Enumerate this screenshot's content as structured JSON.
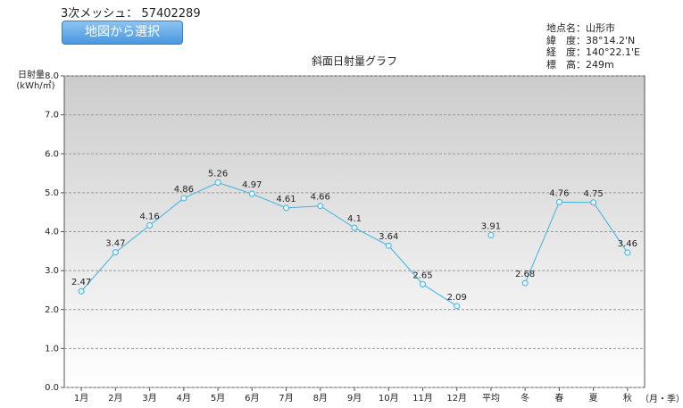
{
  "header": {
    "mesh_label": "3次メッシュ：",
    "mesh_code": "57402289",
    "button": "地図から選択"
  },
  "info": [
    {
      "label": "地点名：",
      "value": "山形市"
    },
    {
      "label": "緯　度：",
      "value": "38°14.2'N"
    },
    {
      "label": "経　度：",
      "value": "140°22.1'E"
    },
    {
      "label": "標　高：",
      "value": "249m"
    }
  ],
  "chart_data": {
    "type": "line",
    "title": "斜面日射量グラフ",
    "y_label": [
      "日射量",
      "(kWh/㎡)"
    ],
    "x_label": "（月・季）",
    "categories": [
      "1月",
      "2月",
      "3月",
      "4月",
      "5月",
      "6月",
      "7月",
      "8月",
      "9月",
      "10月",
      "11月",
      "12月",
      "平均",
      "冬",
      "春",
      "夏",
      "秋"
    ],
    "series": [
      {
        "color": "#3cb2e2",
        "values": [
          2.47,
          3.47,
          4.16,
          4.86,
          5.26,
          4.97,
          4.61,
          4.66,
          4.1,
          3.64,
          2.65,
          2.09,
          null,
          null,
          null,
          null,
          null
        ]
      },
      {
        "color": "#3cb2e2",
        "values": [
          null,
          null,
          null,
          null,
          null,
          null,
          null,
          null,
          null,
          null,
          null,
          null,
          3.91,
          null,
          null,
          null,
          null
        ]
      },
      {
        "color": "#3cb2e2",
        "values": [
          null,
          null,
          null,
          null,
          null,
          null,
          null,
          null,
          null,
          null,
          null,
          null,
          null,
          2.68,
          4.76,
          4.75,
          3.46
        ]
      }
    ],
    "ylim": [
      0,
      8
    ],
    "yticks": [
      {
        "value": 0,
        "label": "0.0"
      },
      {
        "value": 1,
        "label": "1.0"
      },
      {
        "value": 2,
        "label": "2.0"
      },
      {
        "value": 3,
        "label": "3.0"
      },
      {
        "value": 4,
        "label": "4.0"
      },
      {
        "value": 5,
        "label": "5.0"
      },
      {
        "value": 6,
        "label": "6.0"
      },
      {
        "value": 7,
        "label": "7.0"
      },
      {
        "value": 8,
        "label": "8.0"
      }
    ],
    "grid": true
  }
}
